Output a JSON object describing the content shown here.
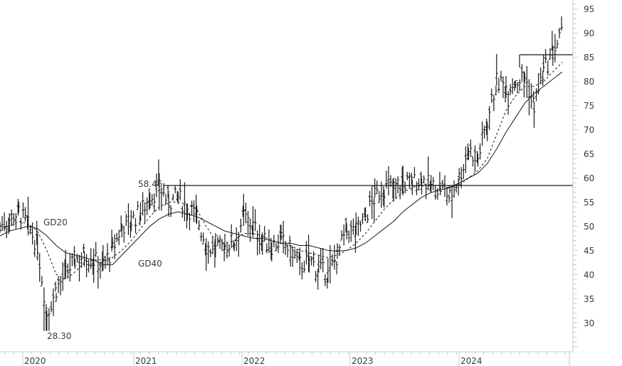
{
  "chart_data": {
    "type": "ohlc",
    "title": "",
    "xlabel": "",
    "ylabel": "",
    "ylim": [
      25,
      96
    ],
    "grid": false,
    "y_ticks": [
      30,
      35,
      40,
      45,
      50,
      55,
      60,
      65,
      70,
      75,
      80,
      85,
      90,
      95
    ],
    "x_ticks": [
      "2020",
      "2021",
      "2022",
      "2023",
      "2024"
    ],
    "legend": [],
    "annotations": [
      {
        "label": "58.46",
        "meaning": "2021 high, horizontal resistance line",
        "value": 58.46
      },
      {
        "label": "28.30",
        "meaning": "2020 low",
        "value": 28.3
      },
      {
        "label": "GD20",
        "meaning": "20-period moving average (dashed)"
      },
      {
        "label": "GD40",
        "meaning": "40-period moving average (solid)"
      }
    ],
    "horizontal_lines": [
      {
        "value": 58.46,
        "from": "2021-03",
        "to": "end"
      },
      {
        "value": 85.5,
        "from": "2024-06",
        "to": "end"
      }
    ],
    "series_note": "Weekly closes approximated from chart; columns: date (YYYY-MM), close",
    "series": [
      {
        "name": "Price (weekly close, approx.)",
        "x": [
          "2019-10",
          "2019-11",
          "2019-12",
          "2020-01",
          "2020-02",
          "2020-03",
          "2020-04",
          "2020-05",
          "2020-06",
          "2020-07",
          "2020-08",
          "2020-09",
          "2020-10",
          "2020-11",
          "2020-12",
          "2021-01",
          "2021-02",
          "2021-03",
          "2021-04",
          "2021-05",
          "2021-06",
          "2021-07",
          "2021-08",
          "2021-09",
          "2021-10",
          "2021-11",
          "2021-12",
          "2022-01",
          "2022-02",
          "2022-03",
          "2022-04",
          "2022-05",
          "2022-06",
          "2022-07",
          "2022-08",
          "2022-09",
          "2022-10",
          "2022-11",
          "2022-12",
          "2023-01",
          "2023-02",
          "2023-03",
          "2023-04",
          "2023-05",
          "2023-06",
          "2023-07",
          "2023-08",
          "2023-09",
          "2023-10",
          "2023-11",
          "2023-12",
          "2024-01",
          "2024-02",
          "2024-03",
          "2024-04",
          "2024-05",
          "2024-06",
          "2024-07",
          "2024-08",
          "2024-09",
          "2024-10"
        ],
        "values": [
          50,
          51.5,
          53,
          50,
          46,
          32,
          37,
          40,
          43,
          44,
          43,
          42,
          45,
          50,
          51,
          53,
          56,
          58,
          55,
          56,
          54,
          52,
          46,
          45,
          46,
          47,
          52,
          50,
          47,
          46,
          47,
          45,
          42,
          43,
          41,
          40,
          44,
          49,
          49,
          52,
          56,
          58,
          58,
          59,
          59,
          60,
          58,
          58,
          56,
          60,
          66,
          64,
          72,
          80,
          79,
          80,
          81,
          75,
          82,
          86,
          90
        ]
      },
      {
        "name": "GD20",
        "style": "dashed",
        "values": [
          49,
          50,
          51,
          50.5,
          49,
          45,
          40,
          39,
          40.5,
          42.5,
          43,
          43,
          43.5,
          45,
          47,
          49.5,
          52,
          54,
          55,
          55,
          54.5,
          53.5,
          50,
          47,
          46.5,
          47,
          48.5,
          48.5,
          48,
          47,
          46.5,
          46,
          45,
          44.5,
          44,
          43.5,
          44,
          45,
          46.5,
          48.5,
          51,
          53.5,
          55.5,
          57,
          58,
          58.5,
          58.5,
          58.5,
          58,
          58.5,
          60,
          61.5,
          64,
          69,
          74,
          77,
          79,
          79,
          80,
          82,
          84
        ]
      },
      {
        "name": "GD40",
        "style": "solid",
        "values": [
          48,
          49,
          49.5,
          50,
          49.5,
          48,
          46,
          44.5,
          44,
          43.5,
          43,
          42,
          42,
          44,
          46,
          48,
          50,
          51.5,
          52.5,
          53,
          52.5,
          52,
          51,
          50,
          49,
          48.5,
          48,
          47.5,
          47.5,
          47,
          46.5,
          46.5,
          46,
          46,
          45.5,
          45,
          44.8,
          45,
          45.5,
          46.5,
          48,
          49.5,
          51,
          53,
          54.5,
          56,
          57,
          57.5,
          58,
          59,
          60,
          61,
          63,
          66,
          69.5,
          72.5,
          75.5,
          77.5,
          79,
          80.5,
          82
        ]
      }
    ]
  },
  "axis": {
    "y_labels": [
      "95",
      "90",
      "85",
      "80",
      "75",
      "70",
      "65",
      "60",
      "55",
      "50",
      "45",
      "40",
      "35",
      "30"
    ],
    "x_labels": [
      "2020",
      "2021",
      "2022",
      "2023",
      "2024"
    ]
  },
  "labels": {
    "high_2021": "58.46",
    "low_2020": "28.30",
    "gd20": "GD20",
    "gd40": "GD40"
  },
  "colors": {
    "price": "#1a1a1a",
    "axis": "#c8c8c8",
    "text": "#333a44",
    "background": "#ffffff"
  }
}
